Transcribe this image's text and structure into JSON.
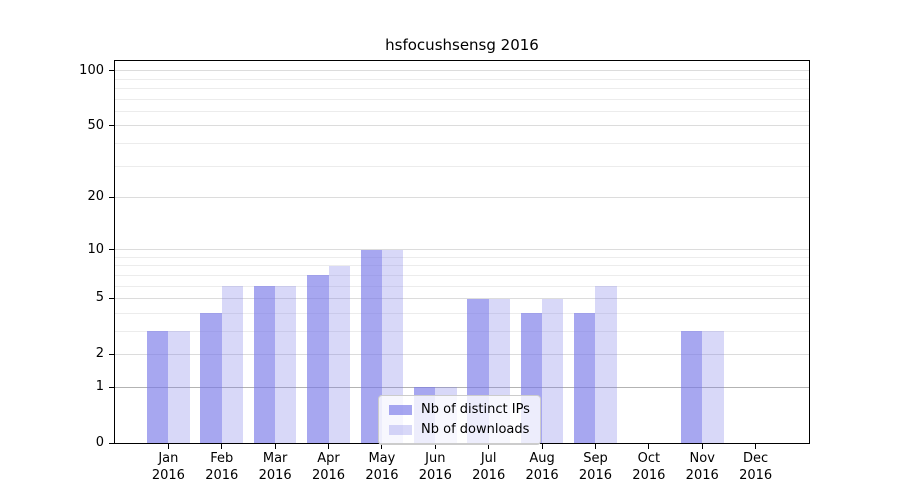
{
  "chart_data": {
    "type": "bar",
    "title": "hsfocushsensg 2016",
    "months": [
      "Jan",
      "Feb",
      "Mar",
      "Apr",
      "May",
      "Jun",
      "Jul",
      "Aug",
      "Sep",
      "Oct",
      "Nov",
      "Dec"
    ],
    "x_year": "2016",
    "series": [
      {
        "name": "Nb of distinct IPs",
        "key": "distinct-ips",
        "color": "rgba(120,120,232,0.65)",
        "values": [
          3,
          4,
          6,
          7,
          10,
          1,
          5,
          4,
          4,
          0,
          3,
          0
        ]
      },
      {
        "name": "Nb of downloads",
        "key": "downloads",
        "color": "rgba(120,120,232,0.29)",
        "values": [
          3,
          6,
          6,
          8,
          10,
          1,
          5,
          5,
          6,
          0,
          3,
          0
        ]
      }
    ],
    "y_axis": {
      "scale": "log1p",
      "tick_values": [
        100,
        50,
        20,
        10,
        5,
        2,
        1,
        0
      ],
      "major_gridlines": [
        2,
        5,
        10,
        20,
        50,
        100
      ],
      "minor_gridlines": [
        3,
        4,
        6,
        7,
        8,
        9,
        30,
        40,
        60,
        70,
        80,
        90
      ],
      "emphasized_gridline": 1,
      "ylim_top": 113
    },
    "legend": {
      "entries": [
        "Nb of distinct IPs",
        "Nb of downloads"
      ]
    },
    "colors": {
      "background": "#ffffff",
      "axis": "#000000",
      "major_gridline": "#dcdcdc",
      "minor_gridline": "#ececec",
      "emphasized_gridline": "#b3b3b3",
      "bar_distinct_ips": "rgba(120,120,232,0.65)",
      "bar_downloads": "rgba(120,120,232,0.29)",
      "legend_border": "#cccccc",
      "legend_background": "rgba(255,255,255,0.8)"
    }
  }
}
